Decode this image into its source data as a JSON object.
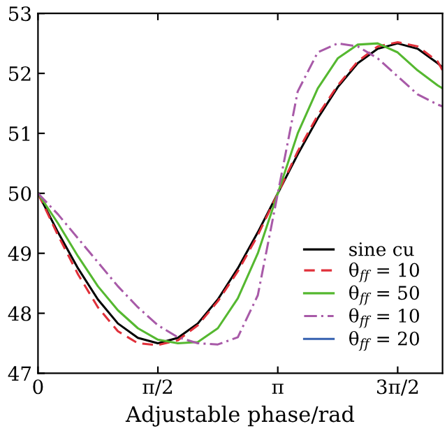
{
  "chart_data": {
    "type": "line",
    "xlabel": "Adjustable phase/rad",
    "xlim": [
      0,
      5.3
    ],
    "xticks": [
      {
        "value": 0,
        "label": "0"
      },
      {
        "value": 1.5708,
        "label": "π/2"
      },
      {
        "value": 3.1416,
        "label": "π"
      },
      {
        "value": 4.7124,
        "label": "3π/2"
      }
    ],
    "ylim": [
      47,
      53
    ],
    "yticks": [
      47,
      48,
      49,
      50,
      51,
      52,
      53
    ],
    "grid": false,
    "legend": "bottom right",
    "x": [
      0,
      0.262,
      0.524,
      0.785,
      1.047,
      1.309,
      1.571,
      1.833,
      2.094,
      2.356,
      2.618,
      2.88,
      3.142,
      3.403,
      3.665,
      3.927,
      4.189,
      4.451,
      4.712,
      4.974,
      5.236,
      5.3
    ],
    "series": [
      {
        "name": "sine cu",
        "color": "#000000",
        "line_style": "solid",
        "values": [
          50,
          49.35,
          48.75,
          48.23,
          47.83,
          47.59,
          47.5,
          47.59,
          47.83,
          48.23,
          48.75,
          49.35,
          50,
          50.65,
          51.25,
          51.77,
          52.17,
          52.41,
          52.5,
          52.41,
          52.17,
          52.1
        ]
      },
      {
        "name": "θ$_{ff}$ = 10",
        "color": "#e0303a",
        "line_style": "dashed",
        "values": [
          50,
          49.3,
          48.65,
          48.1,
          47.7,
          47.5,
          47.47,
          47.55,
          47.8,
          48.2,
          48.7,
          49.3,
          50,
          50.7,
          51.3,
          51.8,
          52.2,
          52.45,
          52.52,
          52.45,
          52.2,
          52.05
        ]
      },
      {
        "name": "θ$_{ff}$ = 50",
        "color": "#55b830",
        "line_style": "solid",
        "values": [
          50,
          49.5,
          48.95,
          48.45,
          48.05,
          47.75,
          47.56,
          47.5,
          47.52,
          47.75,
          48.25,
          49.0,
          50,
          51.0,
          51.75,
          52.25,
          52.48,
          52.5,
          52.35,
          52.05,
          51.8,
          51.75
        ]
      },
      {
        "name": "θ$_{ff}$ = 10",
        "color": "#a85aa8",
        "line_style": "dashdot",
        "values": [
          50,
          49.65,
          49.25,
          48.85,
          48.45,
          48.1,
          47.8,
          47.6,
          47.5,
          47.48,
          47.6,
          48.3,
          50,
          51.7,
          52.35,
          52.5,
          52.45,
          52.25,
          51.95,
          51.65,
          51.48,
          51.45
        ]
      },
      {
        "name": "θ$_{ff}$ = 20",
        "color": "#3560b0",
        "line_style": "solid",
        "values": [
          null,
          null,
          null,
          null,
          null,
          null,
          null,
          null,
          null,
          null,
          null,
          null,
          null,
          null,
          null,
          null,
          null,
          null,
          null,
          null,
          null,
          null
        ]
      }
    ]
  }
}
